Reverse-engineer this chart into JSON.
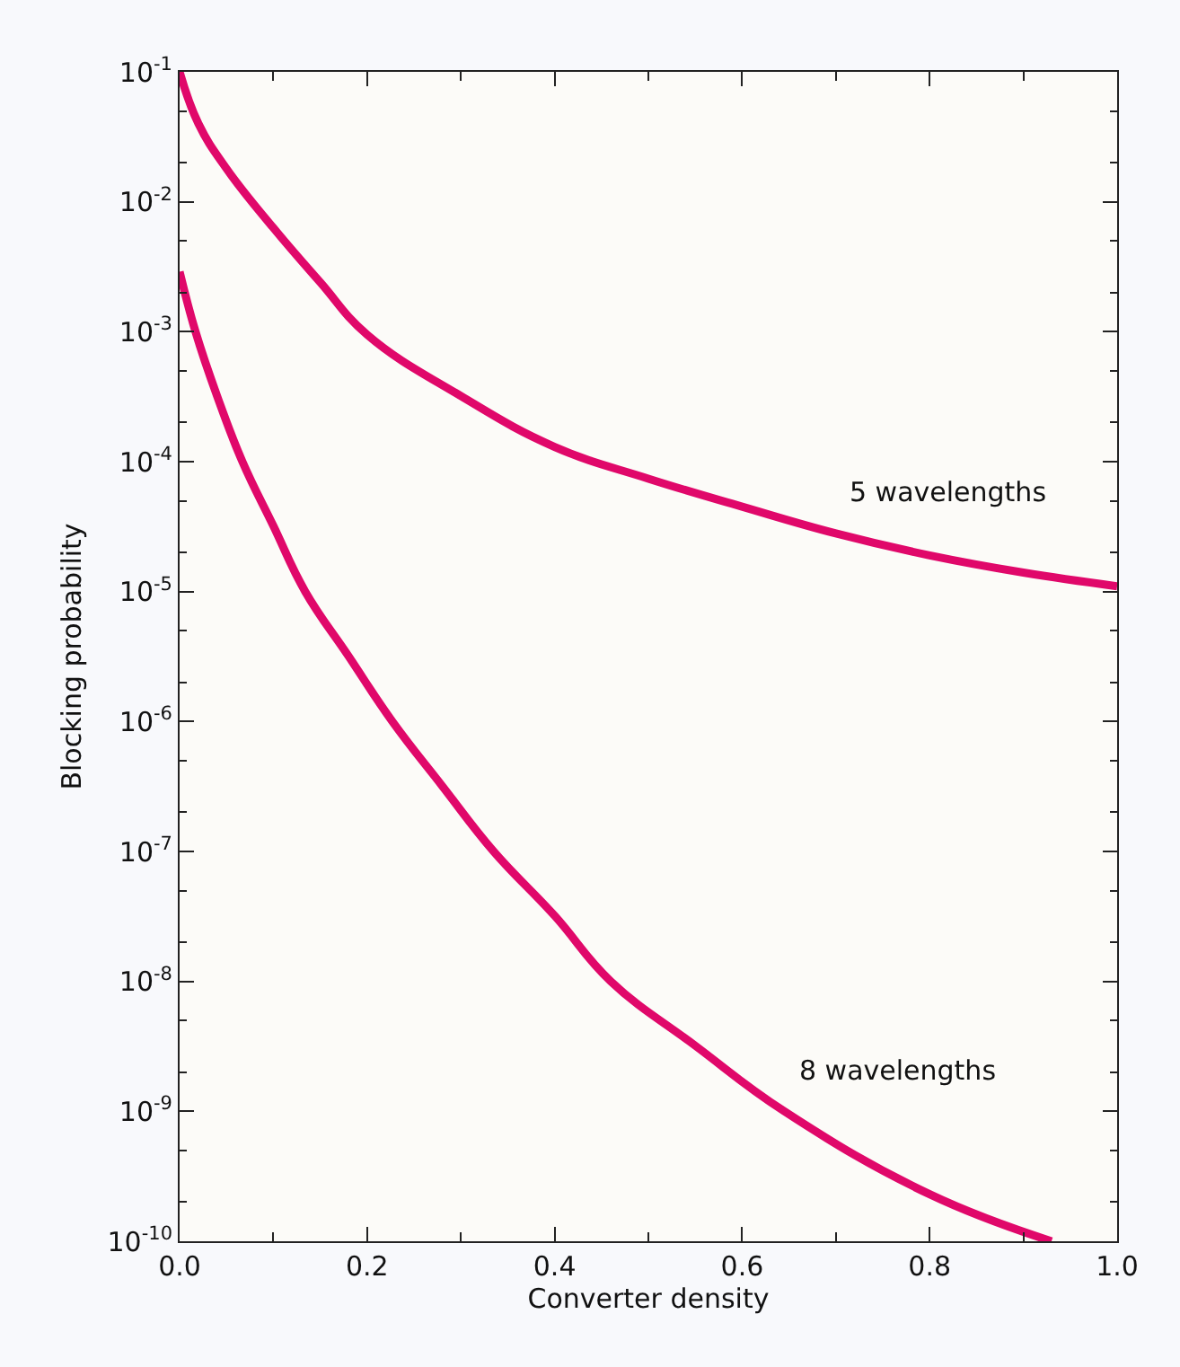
{
  "chart_data": {
    "type": "line",
    "xlabel": "Converter density",
    "ylabel": "Blocking probability",
    "log": "y",
    "grid": false,
    "legend": false,
    "marker": "none",
    "line_style": "solid",
    "xlim": [
      0,
      1
    ],
    "xticks": [
      {
        "value": 0,
        "label": "0.0"
      },
      {
        "value": 0.2,
        "label": "0.2"
      },
      {
        "value": 0.4,
        "label": "0.4"
      },
      {
        "value": 0.6,
        "label": "0.6"
      },
      {
        "value": 0.8,
        "label": "0.8"
      },
      {
        "value": 1,
        "label": "1.0"
      }
    ],
    "ylim": [
      1e-10,
      0.1
    ],
    "yticks": [
      {
        "value": 0.1,
        "label": "10$^{-1}$"
      },
      {
        "value": 0.01,
        "label": "10$^{-2}$"
      },
      {
        "value": 0.001,
        "label": "10$^{-3}$"
      },
      {
        "value": 0.0001,
        "label": "10$^{-4}$"
      },
      {
        "value": 1e-05,
        "label": "10$^{-5}$"
      },
      {
        "value": 1e-06,
        "label": "10$^{-6}$"
      },
      {
        "value": 1e-07,
        "label": "10$^{-7}$"
      },
      {
        "value": 1e-08,
        "label": "10$^{-8}$"
      },
      {
        "value": 1e-09,
        "label": "10$^{-9}$"
      },
      {
        "value": 1e-10,
        "label": "10$^{-10}$"
      }
    ],
    "series": [
      {
        "name": "5 wavelengths",
        "color": "#e0086a",
        "x": [
          0,
          0.02,
          0.05,
          0.1,
          0.15,
          0.2,
          0.3,
          0.4,
          0.5,
          0.6,
          0.7,
          0.8,
          0.9,
          1.0
        ],
        "values": [
          0.1,
          0.04,
          0.018,
          0.0063,
          0.0024,
          0.00095,
          0.00032,
          0.00013,
          7.4e-05,
          4.5e-05,
          2.8e-05,
          1.9e-05,
          1.4e-05,
          1.1e-05
        ]
      },
      {
        "name": "8 wavelengths",
        "color": "#e0086a",
        "x": [
          0,
          0.017,
          0.04,
          0.067,
          0.1,
          0.134,
          0.18,
          0.227,
          0.28,
          0.335,
          0.4,
          0.46,
          0.55,
          0.645,
          0.8,
          0.93
        ],
        "values": [
          0.0029,
          0.001,
          0.00032,
          0.0001,
          3.2e-05,
          1e-05,
          3.2e-06,
          1e-06,
          3.2e-07,
          1e-07,
          3.2e-08,
          1e-08,
          3.2e-09,
          1e-09,
          2.3e-10,
          1e-10
        ]
      }
    ]
  }
}
